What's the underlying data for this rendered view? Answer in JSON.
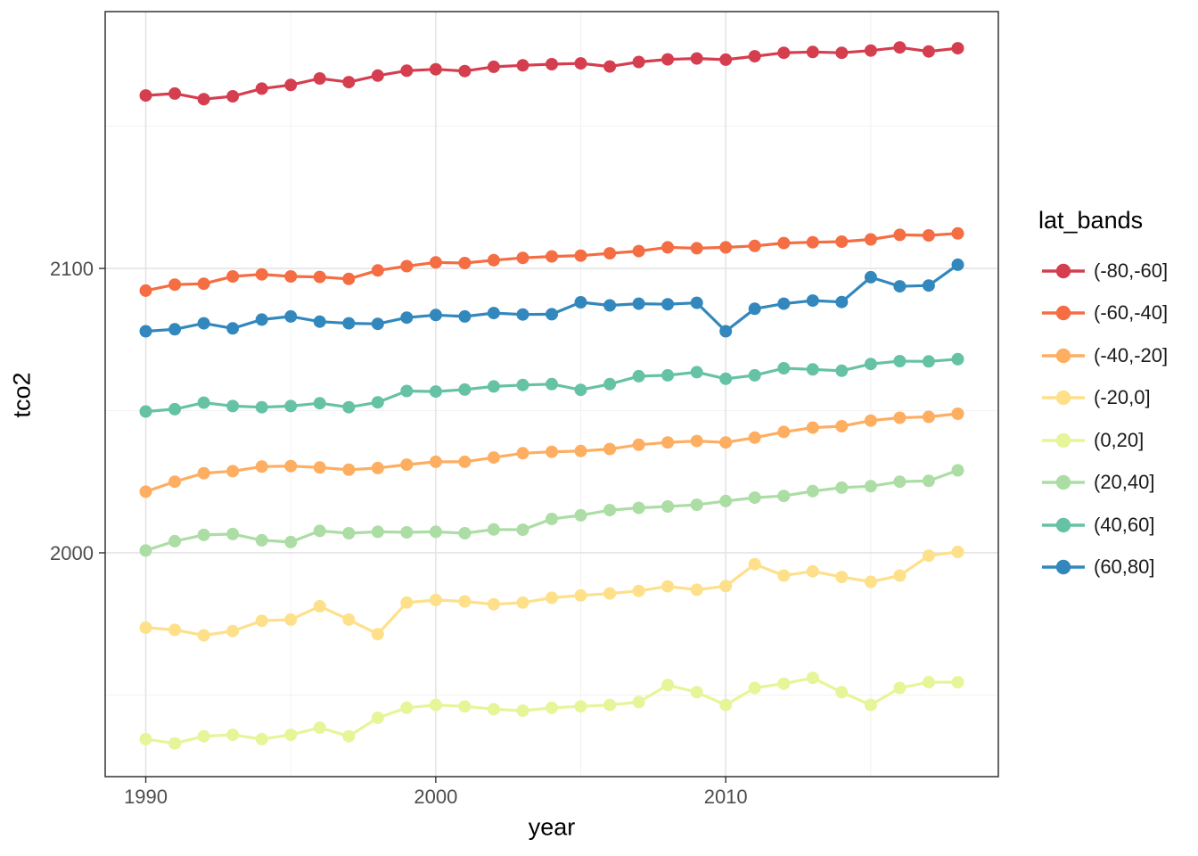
{
  "chart_data": {
    "type": "line",
    "title": "",
    "xlabel": "year",
    "ylabel": "tco2",
    "legend_title": "lat_bands",
    "legend_position": "right",
    "grid": true,
    "panel_border_color": "#333333",
    "major_grid_color": "#e4e4e4",
    "minor_grid_color": "#f2f2f2",
    "tick_color": "#333333",
    "tick_label_color": "#4d4d4d",
    "xlim": [
      1988.6,
      2019.4
    ],
    "ylim": [
      1921.3,
      2190.3
    ],
    "x_breaks": [
      1990,
      2000,
      2010
    ],
    "x_minor_breaks": [
      1995,
      2005,
      2015
    ],
    "y_breaks": [
      2000,
      2100
    ],
    "y_minor_breaks": [
      1950,
      2050,
      2150
    ],
    "x": [
      1990,
      1991,
      1992,
      1993,
      1994,
      1995,
      1996,
      1997,
      1998,
      1999,
      2000,
      2001,
      2002,
      2003,
      2004,
      2005,
      2006,
      2007,
      2008,
      2009,
      2010,
      2011,
      2012,
      2013,
      2014,
      2015,
      2016,
      2017,
      2018
    ],
    "series": [
      {
        "name": "(-80,-60]",
        "color": "#D53E4F",
        "values": [
          2160.8,
          2161.5,
          2159.5,
          2160.5,
          2163.2,
          2164.5,
          2166.8,
          2165.5,
          2167.8,
          2169.5,
          2170.0,
          2169.4,
          2170.9,
          2171.4,
          2171.8,
          2172.1,
          2171.0,
          2172.6,
          2173.5,
          2173.8,
          2173.4,
          2174.6,
          2175.8,
          2176.1,
          2175.8,
          2176.6,
          2177.7,
          2176.3,
          2177.4
        ]
      },
      {
        "name": "(-60,-40]",
        "color": "#F46D43",
        "values": [
          2092.2,
          2094.3,
          2094.6,
          2097.2,
          2097.9,
          2097.2,
          2097.0,
          2096.3,
          2099.3,
          2100.8,
          2102.1,
          2101.9,
          2102.9,
          2103.7,
          2104.2,
          2104.5,
          2105.3,
          2106.1,
          2107.4,
          2107.1,
          2107.4,
          2107.9,
          2108.9,
          2109.2,
          2109.4,
          2110.2,
          2111.8,
          2111.6,
          2112.3
        ]
      },
      {
        "name": "(-40,-20]",
        "color": "#FDAE61",
        "values": [
          2021.5,
          2025.0,
          2028.0,
          2028.7,
          2030.3,
          2030.5,
          2030.0,
          2029.2,
          2029.8,
          2031.0,
          2032.0,
          2032.0,
          2033.5,
          2035.0,
          2035.5,
          2035.8,
          2036.5,
          2038.0,
          2038.8,
          2039.3,
          2038.8,
          2040.5,
          2042.5,
          2044.0,
          2044.5,
          2046.5,
          2047.5,
          2047.8,
          2048.9
        ]
      },
      {
        "name": "(-20,0]",
        "color": "#FEE08B",
        "values": [
          1973.7,
          1972.9,
          1971.0,
          1972.5,
          1976.1,
          1976.5,
          1981.2,
          1976.5,
          1971.4,
          1982.5,
          1983.4,
          1982.9,
          1981.9,
          1982.5,
          1984.2,
          1985.0,
          1985.7,
          1986.6,
          1988.2,
          1987.0,
          1988.3,
          1996.0,
          1992.0,
          1993.5,
          1991.5,
          1989.8,
          1992.0,
          1999.0,
          2000.3
        ]
      },
      {
        "name": "(0,20]",
        "color": "#E6F598",
        "values": [
          1934.5,
          1933.0,
          1935.5,
          1936.0,
          1934.5,
          1936.0,
          1938.5,
          1935.5,
          1942.0,
          1945.5,
          1946.5,
          1946.0,
          1945.0,
          1944.5,
          1945.5,
          1946.0,
          1946.5,
          1947.5,
          1953.5,
          1951.0,
          1946.5,
          1952.5,
          1954.0,
          1956.0,
          1951.0,
          1946.5,
          1952.5,
          1954.5,
          1954.5
        ]
      },
      {
        "name": "(20,40]",
        "color": "#ABDDA4",
        "values": [
          2000.8,
          2004.1,
          2006.3,
          2006.6,
          2004.4,
          2003.8,
          2007.7,
          2006.9,
          2007.4,
          2007.2,
          2007.4,
          2006.9,
          2008.2,
          2008.1,
          2011.9,
          2013.2,
          2015.0,
          2015.8,
          2016.3,
          2016.9,
          2018.2,
          2019.4,
          2020.0,
          2021.7,
          2022.9,
          2023.4,
          2025.0,
          2025.3,
          2029.0
        ]
      },
      {
        "name": "(40,60]",
        "color": "#66C2A5",
        "values": [
          2049.7,
          2050.5,
          2052.8,
          2051.6,
          2051.2,
          2051.6,
          2052.6,
          2051.2,
          2052.9,
          2056.9,
          2056.7,
          2057.4,
          2058.5,
          2059.0,
          2059.3,
          2057.3,
          2059.3,
          2062.1,
          2062.4,
          2063.5,
          2061.2,
          2062.4,
          2064.9,
          2064.5,
          2064.0,
          2066.4,
          2067.4,
          2067.3,
          2068.1
        ]
      },
      {
        "name": "(60,80]",
        "color": "#3288BD",
        "values": [
          2077.9,
          2078.6,
          2080.7,
          2078.9,
          2082.0,
          2083.1,
          2081.3,
          2080.7,
          2080.5,
          2082.7,
          2083.6,
          2083.1,
          2084.3,
          2083.8,
          2083.9,
          2088.1,
          2087.0,
          2087.6,
          2087.4,
          2087.9,
          2077.9,
          2085.8,
          2087.6,
          2088.7,
          2088.2,
          2096.9,
          2093.7,
          2094.0,
          2101.3
        ]
      }
    ]
  }
}
